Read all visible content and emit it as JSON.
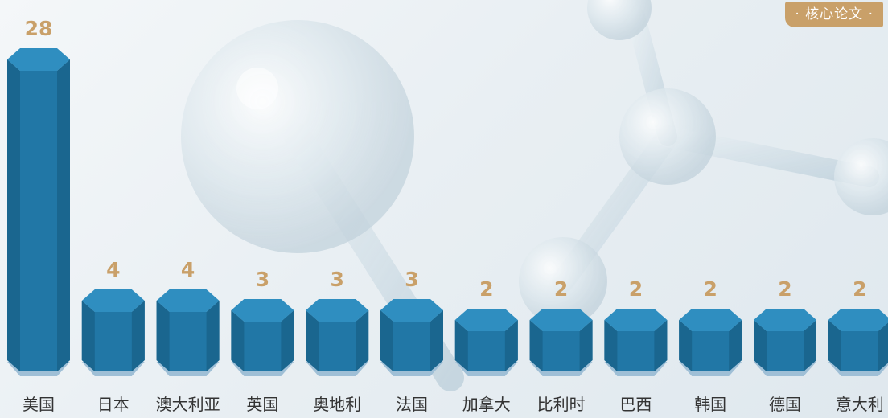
{
  "badge": {
    "label": "· 核心论文 ·"
  },
  "colors": {
    "bar_front": "#2177a6",
    "bar_side": "#1a668f",
    "bar_top": "#2f8ec0",
    "bar_base": "#9fbfd6",
    "value_label": "#c9a069",
    "category_label": "#333333",
    "badge_bg": "#c9a069"
  },
  "chart_data": {
    "type": "bar",
    "categories": [
      "美国",
      "日本",
      "澳大利亚",
      "英国",
      "奥地利",
      "法国",
      "加拿大",
      "比利时",
      "巴西",
      "韩国",
      "德国",
      "意大利"
    ],
    "values": [
      28,
      4,
      4,
      3,
      3,
      3,
      2,
      2,
      2,
      2,
      2,
      2
    ],
    "title": "",
    "xlabel": "",
    "ylabel": "",
    "ylim": [
      0,
      28
    ],
    "grid": false,
    "legend": "none"
  }
}
